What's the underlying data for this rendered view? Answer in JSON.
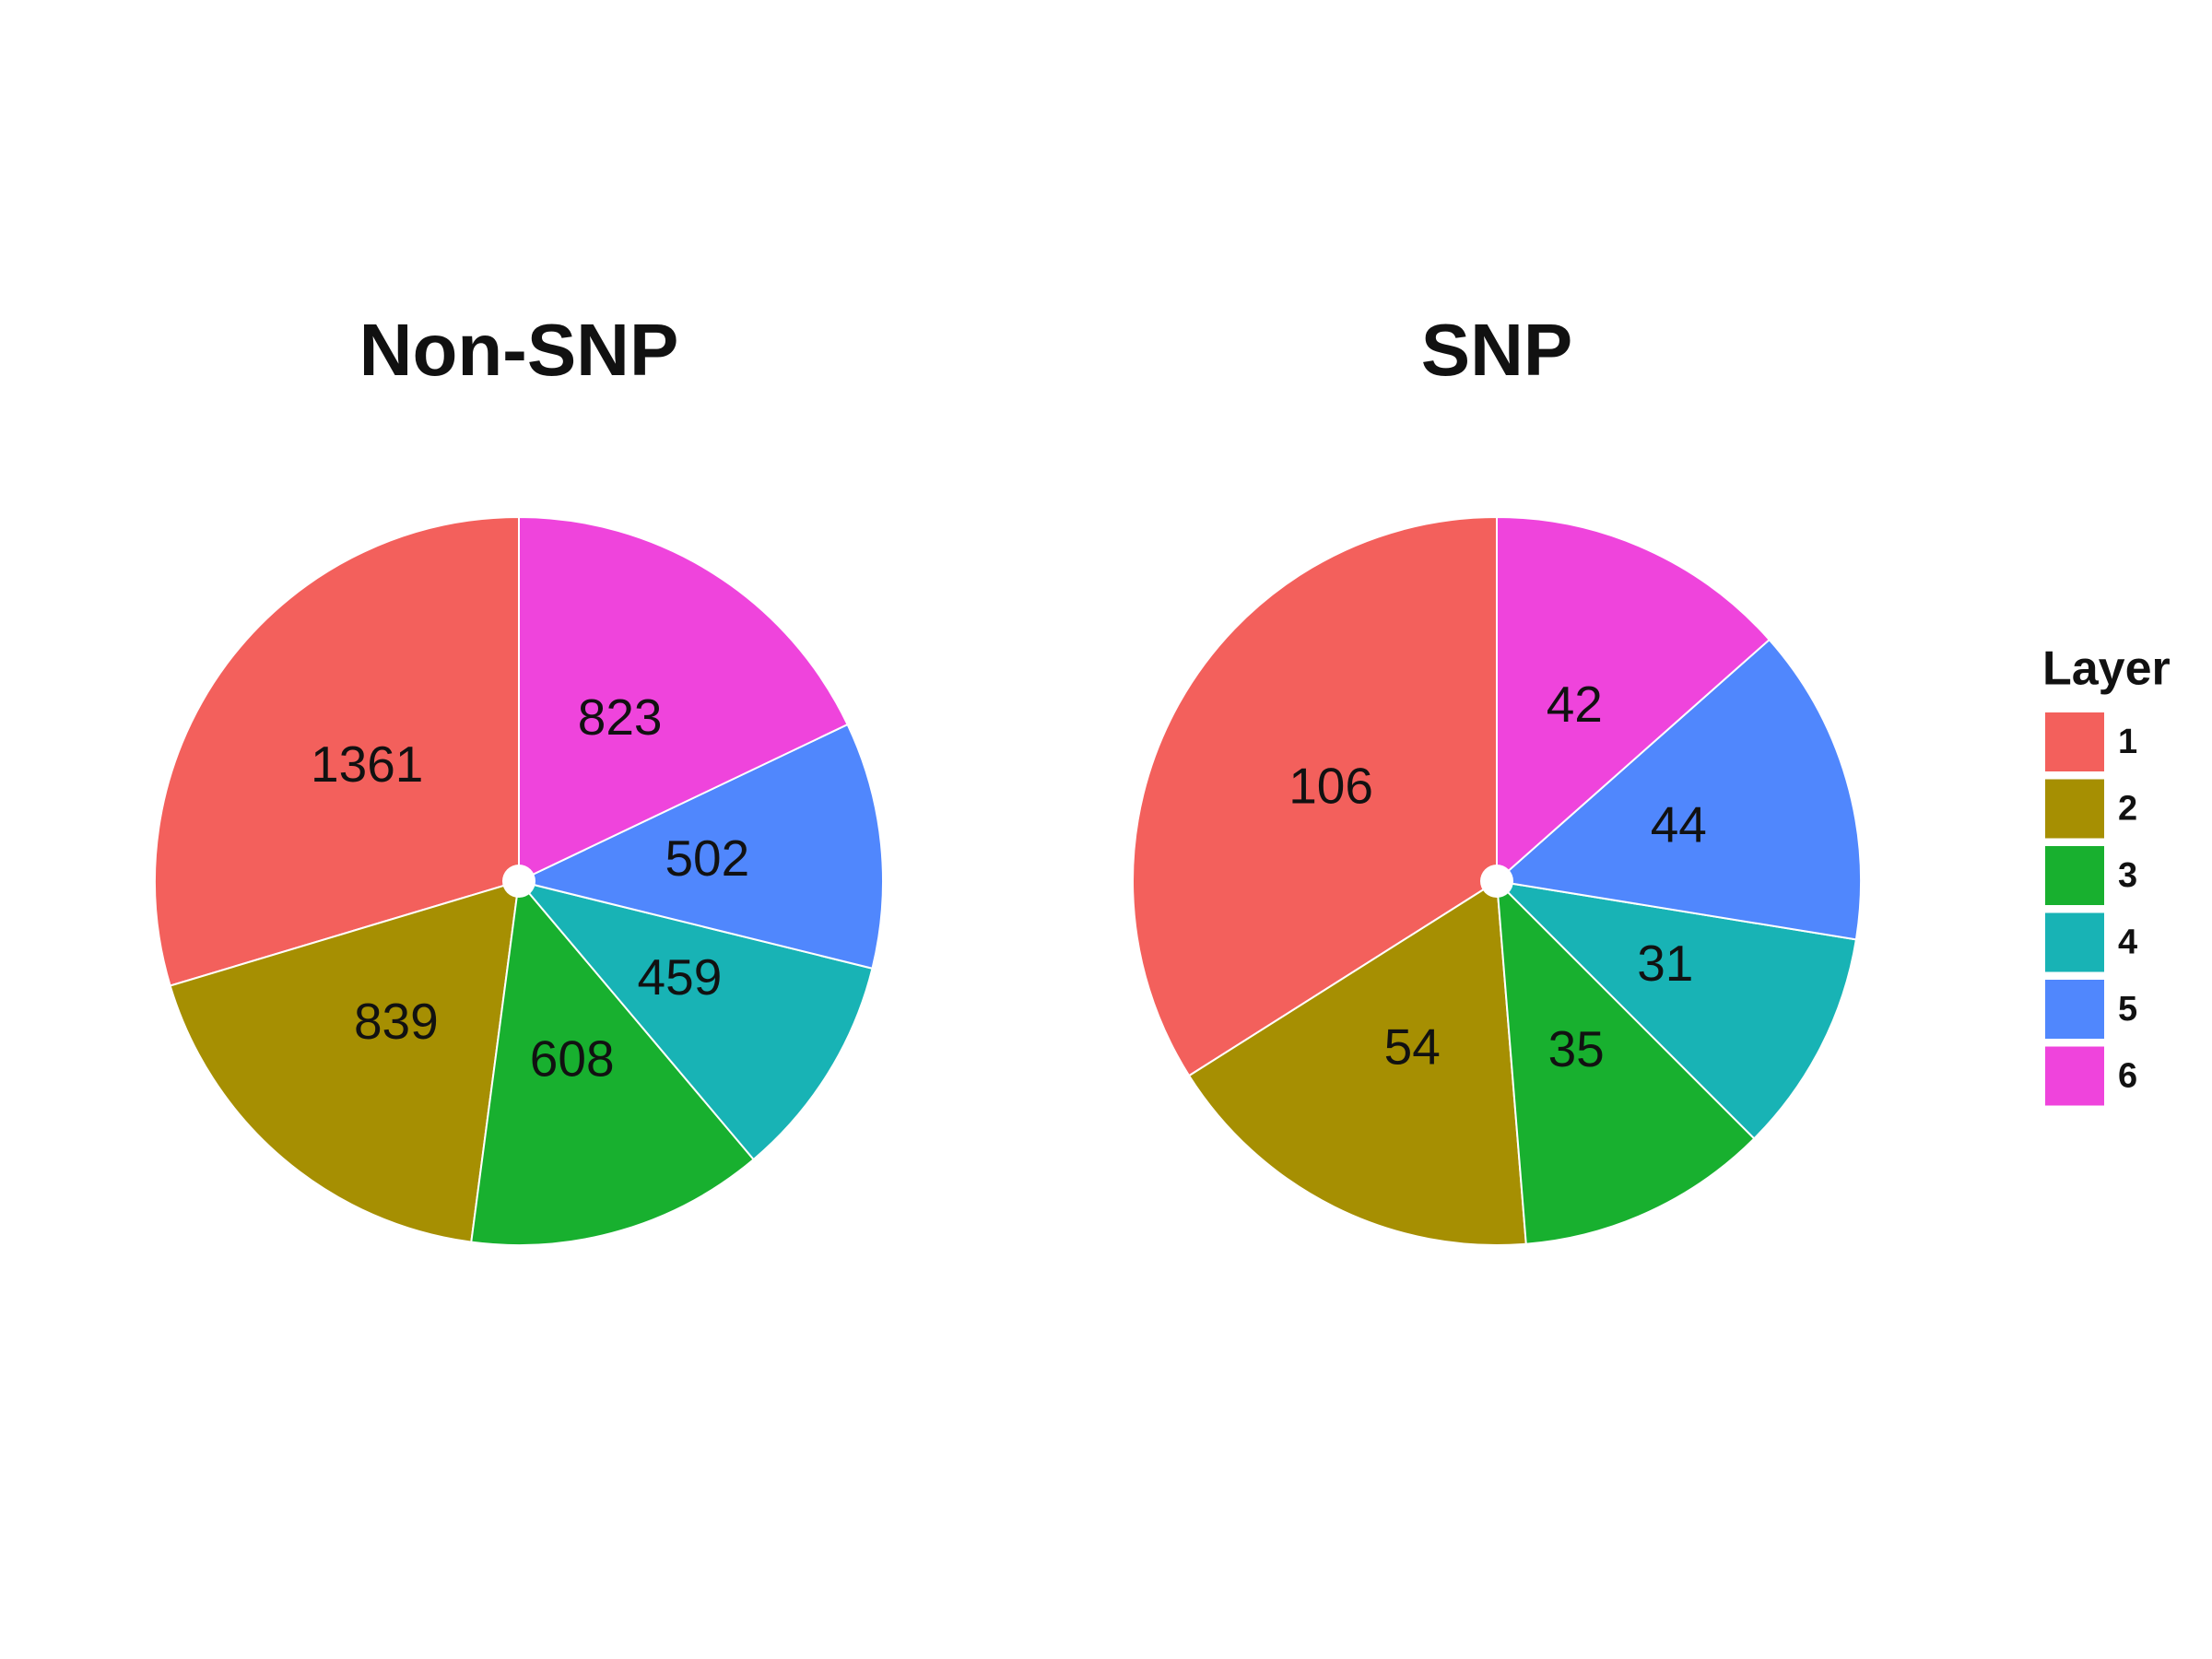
{
  "chart_data": [
    {
      "type": "pie",
      "title": "Non-SNP",
      "categories": [
        "1",
        "2",
        "3",
        "4",
        "5",
        "6"
      ],
      "values": [
        1361,
        839,
        608,
        459,
        502,
        823
      ],
      "colors": [
        "#f3605c",
        "#a68f02",
        "#18b02f",
        "#18b3b5",
        "#5087fd",
        "#ef44dc"
      ]
    },
    {
      "type": "pie",
      "title": "SNP",
      "categories": [
        "1",
        "2",
        "3",
        "4",
        "5",
        "6"
      ],
      "values": [
        106,
        54,
        35,
        31,
        44,
        42
      ],
      "colors": [
        "#f3605c",
        "#a68f02",
        "#18b02f",
        "#18b3b5",
        "#5087fd",
        "#ef44dc"
      ],
      "legend_title": "Layer"
    }
  ]
}
